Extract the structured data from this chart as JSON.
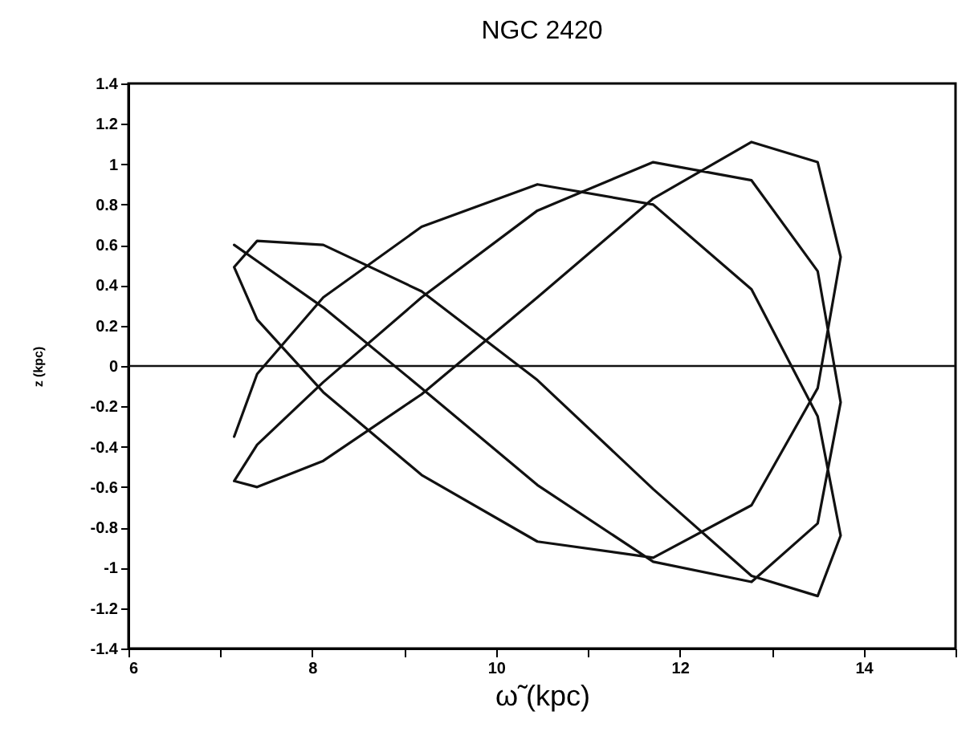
{
  "chart_data": {
    "type": "line",
    "title": "NGC 2420",
    "xlabel": "ω̃ (kpc)",
    "ylabel": "z (kpc)",
    "x": [
      7.15,
      7.4,
      8.12,
      9.19,
      10.45,
      11.71,
      12.78,
      13.5,
      13.75,
      13.5,
      12.78,
      11.71,
      10.45,
      9.19,
      8.12,
      7.4,
      7.15,
      7.4,
      8.12,
      9.19,
      10.45,
      11.71,
      12.78,
      13.5,
      13.75,
      13.5,
      12.78,
      11.71,
      10.45,
      9.19,
      8.12,
      7.4,
      7.15,
      7.4,
      8.12,
      9.19,
      10.45,
      11.71,
      12.78,
      13.5,
      13.75,
      13.5,
      12.78,
      11.71,
      10.45,
      9.19,
      8.12,
      7.4,
      7.15
    ],
    "series": [
      {
        "color": "#111111",
        "values": [
          0.6,
          0.52,
          0.29,
          -0.11,
          -0.59,
          -0.97,
          -1.07,
          -0.78,
          -0.18,
          0.47,
          0.92,
          1.01,
          0.77,
          0.34,
          -0.08,
          -0.39,
          -0.57,
          -0.6,
          -0.47,
          -0.14,
          0.34,
          0.83,
          1.11,
          1.01,
          0.54,
          -0.11,
          -0.69,
          -0.95,
          -0.87,
          -0.54,
          -0.13,
          0.23,
          0.49,
          0.62,
          0.6,
          0.37,
          -0.07,
          -0.61,
          -1.04,
          -1.14,
          -0.84,
          -0.25,
          0.38,
          0.8,
          0.9,
          0.69,
          0.34,
          -0.04,
          -0.35
        ]
      }
    ],
    "xlim": [
      6,
      15
    ],
    "xticks": [
      6,
      {
        "value": 7,
        "label": null
      },
      8,
      {
        "value": 9,
        "label": null
      },
      10,
      {
        "value": 11,
        "label": null
      },
      12,
      {
        "value": 13,
        "label": null
      },
      14,
      {
        "value": 15,
        "label": null
      }
    ],
    "ylim": [
      -1.4,
      1.4
    ],
    "yticks": [
      -1.4,
      -1.2,
      -1,
      -0.8,
      -0.6,
      -0.4,
      -0.2,
      0,
      0.2,
      0.4,
      0.6,
      0.8,
      1,
      1.2,
      1.4
    ],
    "ref_lines": [
      {
        "axis": "y",
        "value": 0,
        "label": null,
        "color": "#111111"
      }
    ],
    "grid": false,
    "marker": "none",
    "line_style": "solid"
  }
}
